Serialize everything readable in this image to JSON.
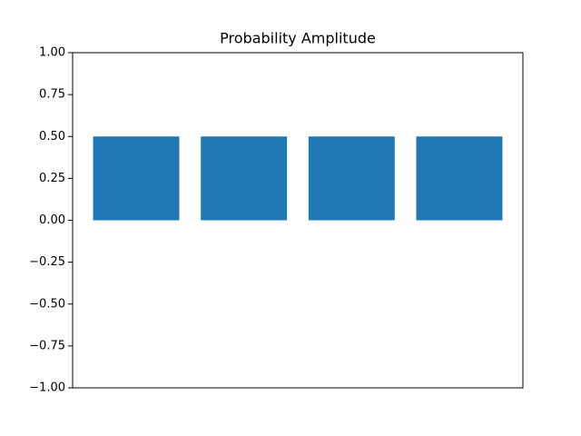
{
  "chart_data": {
    "type": "bar",
    "title": "Probability Amplitude",
    "categories": [
      null,
      null,
      null,
      null
    ],
    "values": [
      0.5,
      0.5,
      0.5,
      0.5
    ],
    "color": "#1f77b4",
    "ylim": [
      -1,
      1
    ],
    "yticks": [
      {
        "value": -1,
        "label": "−1.00"
      },
      {
        "value": -0.75,
        "label": "−0.75"
      },
      {
        "value": -0.5,
        "label": "−0.50"
      },
      {
        "value": -0.25,
        "label": "−0.25"
      },
      {
        "value": 0,
        "label": "0.00"
      },
      {
        "value": 0.25,
        "label": "0.25"
      },
      {
        "value": 0.5,
        "label": "0.50"
      },
      {
        "value": 0.75,
        "label": "0.75"
      },
      {
        "value": 1,
        "label": "1.00"
      }
    ],
    "grid": false
  }
}
